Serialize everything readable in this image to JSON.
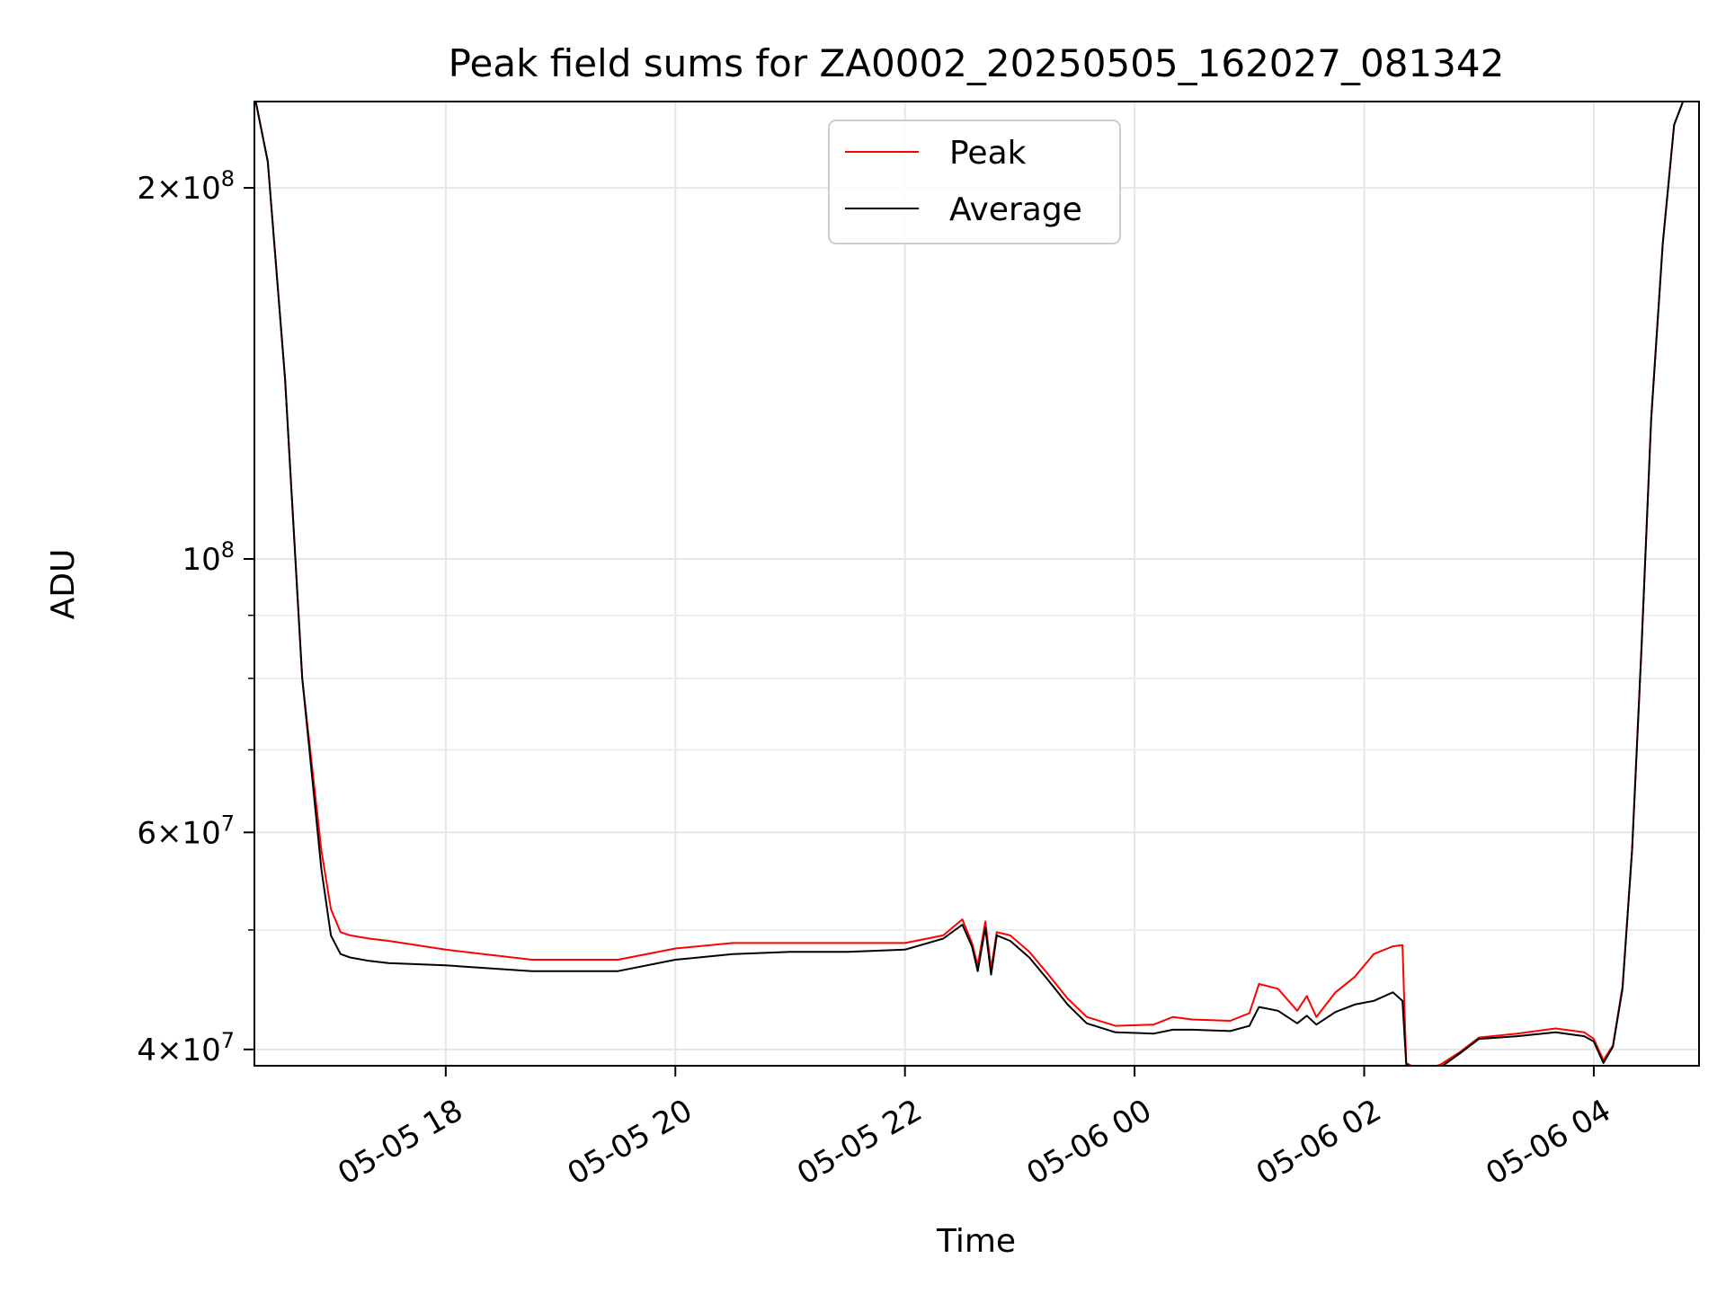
{
  "chart_data": {
    "type": "line",
    "title": "Peak field sums for ZA0002_20250505_162027_081342",
    "xlabel": "Time",
    "ylabel": "ADU",
    "y_scale": "log",
    "ylim": [
      38800000,
      235000000
    ],
    "xlim": [
      "2025-05-05 16:20",
      "2025-05-06 04:55"
    ],
    "grid": true,
    "legend_position": "top-center",
    "x_ticks": [
      "2025-05-05 18:00",
      "2025-05-05 20:00",
      "2025-05-05 22:00",
      "2025-05-06 00:00",
      "2025-05-06 02:00",
      "2025-05-06 04:00"
    ],
    "x_tick_labels": [
      "05-05 18",
      "05-05 20",
      "05-05 22",
      "05-06 00",
      "05-06 02",
      "05-06 04"
    ],
    "y_major_ticks": [
      {
        "value": 40000000,
        "mantissa": "4",
        "exponent": "7"
      },
      {
        "value": 60000000,
        "mantissa": "6",
        "exponent": "7"
      },
      {
        "value": 100000000,
        "mantissa": "",
        "exponent": "8"
      },
      {
        "value": 200000000,
        "mantissa": "2",
        "exponent": "8"
      }
    ],
    "y_minor_ticks": [
      50000000,
      70000000,
      80000000,
      90000000
    ],
    "series": [
      {
        "name": "Peak",
        "color": "#ff0000",
        "x": [
          "2025-05-05 16:20",
          "2025-05-05 16:27",
          "2025-05-05 16:36",
          "2025-05-05 16:45",
          "2025-05-05 16:55",
          "2025-05-05 17:00",
          "2025-05-05 17:05",
          "2025-05-05 17:10",
          "2025-05-05 17:20",
          "2025-05-05 17:30",
          "2025-05-05 18:00",
          "2025-05-05 18:45",
          "2025-05-05 19:30",
          "2025-05-05 20:00",
          "2025-05-05 20:30",
          "2025-05-05 21:00",
          "2025-05-05 21:30",
          "2025-05-05 22:00",
          "2025-05-05 22:20",
          "2025-05-05 22:30",
          "2025-05-05 22:35",
          "2025-05-05 22:38",
          "2025-05-05 22:42",
          "2025-05-05 22:45",
          "2025-05-05 22:48",
          "2025-05-05 22:55",
          "2025-05-05 23:05",
          "2025-05-05 23:15",
          "2025-05-05 23:25",
          "2025-05-05 23:35",
          "2025-05-05 23:50",
          "2025-05-06 00:10",
          "2025-05-06 00:20",
          "2025-05-06 00:30",
          "2025-05-06 00:50",
          "2025-05-06 01:00",
          "2025-05-06 01:05",
          "2025-05-06 01:15",
          "2025-05-06 01:25",
          "2025-05-06 01:30",
          "2025-05-06 01:35",
          "2025-05-06 01:45",
          "2025-05-06 01:55",
          "2025-05-06 02:05",
          "2025-05-06 02:15",
          "2025-05-06 02:20",
          "2025-05-06 02:22",
          "2025-05-06 02:30",
          "2025-05-06 02:40",
          "2025-05-06 02:50",
          "2025-05-06 03:00",
          "2025-05-06 03:20",
          "2025-05-06 03:40",
          "2025-05-06 03:55",
          "2025-05-06 04:00",
          "2025-05-06 04:05",
          "2025-05-06 04:10",
          "2025-05-06 04:15",
          "2025-05-06 04:20",
          "2025-05-06 04:25",
          "2025-05-06 04:30",
          "2025-05-06 04:36",
          "2025-05-06 04:42",
          "2025-05-06 04:48",
          "2025-05-06 04:55"
        ],
        "y": [
          238000000,
          210000000,
          140000000,
          80000000,
          58000000,
          52000000,
          49800000,
          49500000,
          49200000,
          49000000,
          48200000,
          47300000,
          47300000,
          48300000,
          48800000,
          48800000,
          48800000,
          48800000,
          49500000,
          51000000,
          48800000,
          46800000,
          50800000,
          46500000,
          49800000,
          49500000,
          48000000,
          46000000,
          44000000,
          42500000,
          41800000,
          41900000,
          42500000,
          42300000,
          42200000,
          42800000,
          45200000,
          44800000,
          43000000,
          44200000,
          42500000,
          44500000,
          45800000,
          47800000,
          48500000,
          48600000,
          39000000,
          38400000,
          38900000,
          39800000,
          40900000,
          41200000,
          41600000,
          41300000,
          40800000,
          39200000,
          40300000,
          45000000,
          58000000,
          85000000,
          130000000,
          180000000,
          225000000,
          238000000,
          238000000
        ]
      },
      {
        "name": "Average",
        "color": "#000000",
        "x": [
          "2025-05-05 16:20",
          "2025-05-05 16:27",
          "2025-05-05 16:36",
          "2025-05-05 16:45",
          "2025-05-05 16:55",
          "2025-05-05 17:00",
          "2025-05-05 17:05",
          "2025-05-05 17:10",
          "2025-05-05 17:20",
          "2025-05-05 17:30",
          "2025-05-05 18:00",
          "2025-05-05 18:45",
          "2025-05-05 19:30",
          "2025-05-05 20:00",
          "2025-05-05 20:30",
          "2025-05-05 21:00",
          "2025-05-05 21:30",
          "2025-05-05 22:00",
          "2025-05-05 22:20",
          "2025-05-05 22:30",
          "2025-05-05 22:35",
          "2025-05-05 22:38",
          "2025-05-05 22:42",
          "2025-05-05 22:45",
          "2025-05-05 22:48",
          "2025-05-05 22:55",
          "2025-05-05 23:05",
          "2025-05-05 23:15",
          "2025-05-05 23:25",
          "2025-05-05 23:35",
          "2025-05-05 23:50",
          "2025-05-06 00:10",
          "2025-05-06 00:20",
          "2025-05-06 00:30",
          "2025-05-06 00:50",
          "2025-05-06 01:00",
          "2025-05-06 01:05",
          "2025-05-06 01:15",
          "2025-05-06 01:25",
          "2025-05-06 01:30",
          "2025-05-06 01:35",
          "2025-05-06 01:45",
          "2025-05-06 01:55",
          "2025-05-06 02:05",
          "2025-05-06 02:15",
          "2025-05-06 02:20",
          "2025-05-06 02:22",
          "2025-05-06 02:30",
          "2025-05-06 02:40",
          "2025-05-06 02:50",
          "2025-05-06 03:00",
          "2025-05-06 03:20",
          "2025-05-06 03:40",
          "2025-05-06 03:55",
          "2025-05-06 04:00",
          "2025-05-06 04:05",
          "2025-05-06 04:10",
          "2025-05-06 04:15",
          "2025-05-06 04:20",
          "2025-05-06 04:25",
          "2025-05-06 04:30",
          "2025-05-06 04:36",
          "2025-05-06 04:42",
          "2025-05-06 04:48",
          "2025-05-06 04:55"
        ],
        "y": [
          238000000,
          210000000,
          140000000,
          80000000,
          56000000,
          49500000,
          47800000,
          47500000,
          47200000,
          47000000,
          46800000,
          46300000,
          46300000,
          47300000,
          47800000,
          48000000,
          48000000,
          48200000,
          49200000,
          50500000,
          48500000,
          46300000,
          50200000,
          46000000,
          49500000,
          49000000,
          47500000,
          45500000,
          43500000,
          42000000,
          41300000,
          41200000,
          41500000,
          41500000,
          41400000,
          41800000,
          43300000,
          43000000,
          42000000,
          42600000,
          41900000,
          42900000,
          43500000,
          43800000,
          44500000,
          43800000,
          38900000,
          38400000,
          38700000,
          39700000,
          40800000,
          41000000,
          41300000,
          41000000,
          40600000,
          39000000,
          40200000,
          44800000,
          58000000,
          85000000,
          130000000,
          180000000,
          225000000,
          238000000,
          238000000
        ]
      }
    ]
  }
}
